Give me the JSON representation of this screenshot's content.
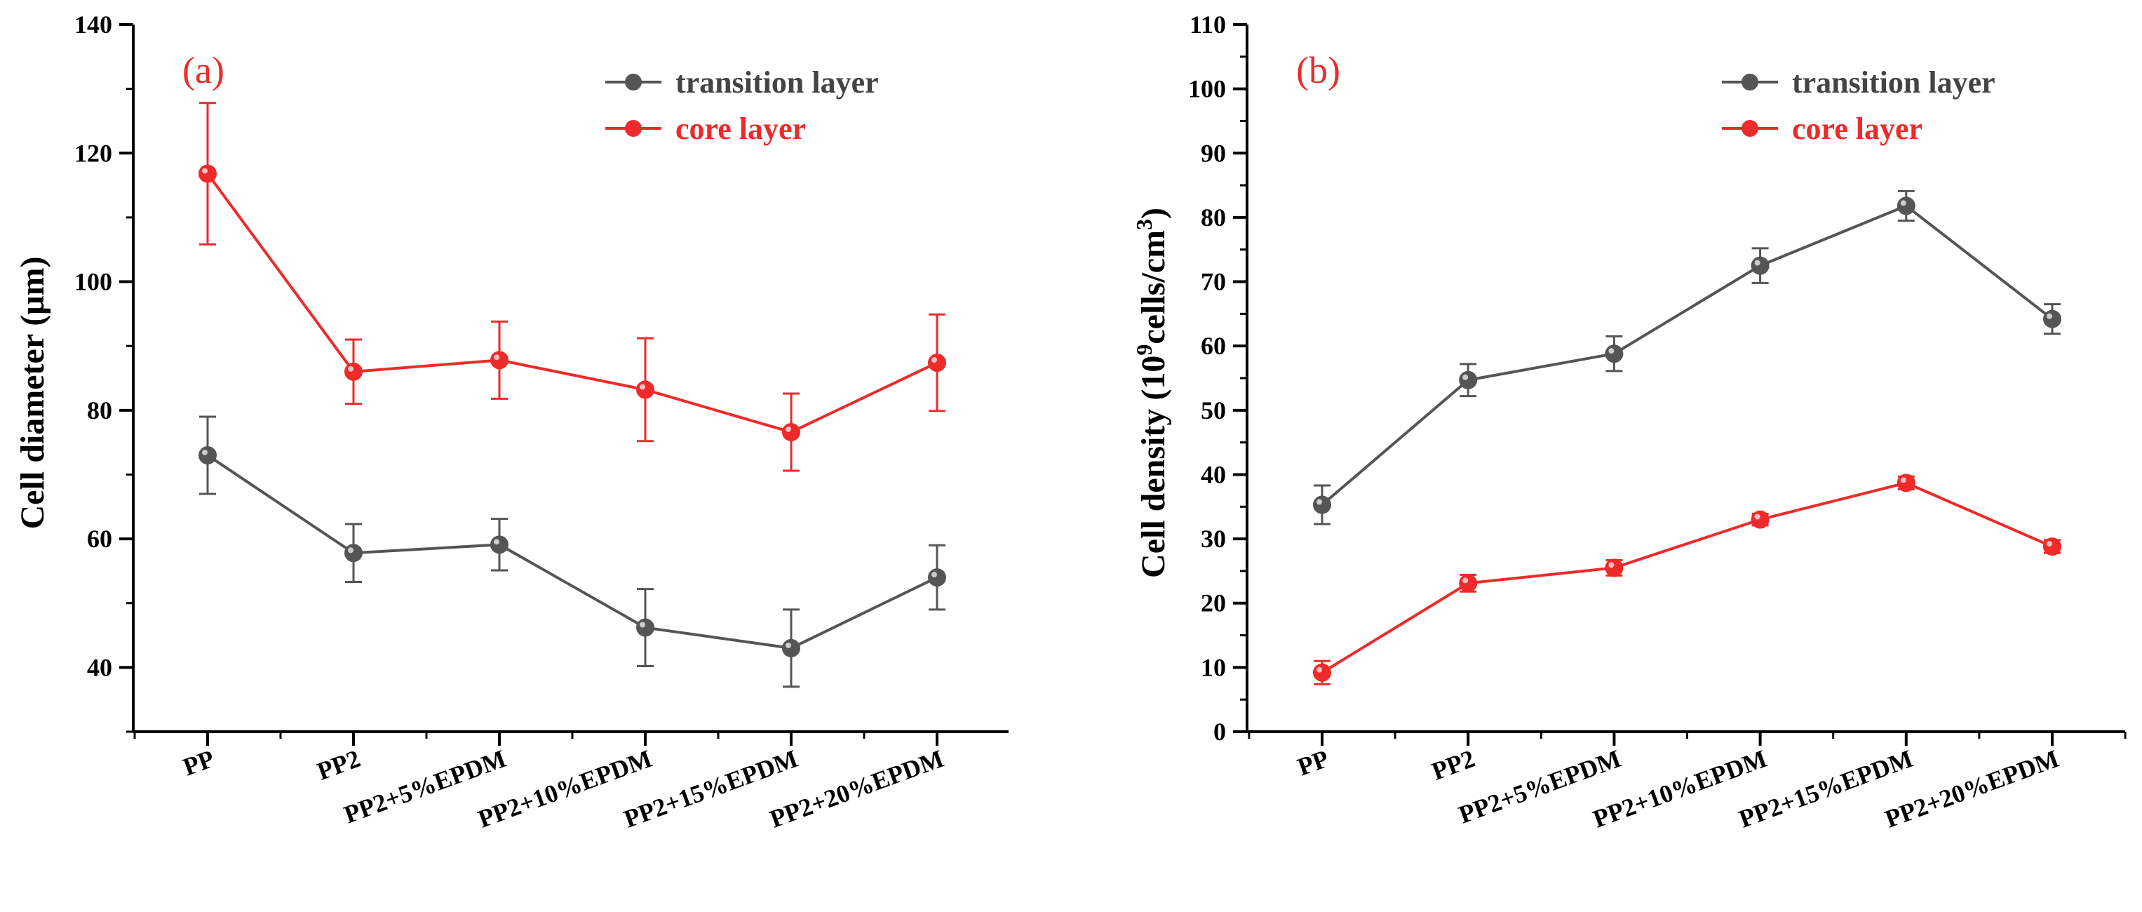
{
  "chart_data": [
    {
      "panel_label": "(a)",
      "type": "line",
      "categories": [
        "PP",
        "PP2",
        "PP2+5%EPDM",
        "PP2+10%EPDM",
        "PP2+15%EPDM",
        "PP2+20%EPDM"
      ],
      "ylabel": "Cell diameter (μm)",
      "ylim": [
        30,
        140
      ],
      "yticks": [
        40,
        60,
        80,
        100,
        120,
        140
      ],
      "yminor": 10,
      "legend_position": "top-right",
      "series": [
        {
          "name": "transition layer",
          "color": "#555555",
          "values": [
            73,
            57.8,
            59.1,
            46.2,
            43,
            54
          ],
          "errors": [
            6,
            4.5,
            4,
            6,
            6,
            5
          ]
        },
        {
          "name": "core layer",
          "color": "#ee2a2a",
          "values": [
            116.8,
            86,
            87.8,
            83.2,
            76.6,
            87.4
          ],
          "errors": [
            11,
            5,
            6,
            8,
            6,
            7.5
          ]
        }
      ]
    },
    {
      "panel_label": "(b)",
      "type": "line",
      "categories": [
        "PP",
        "PP2",
        "PP2+5%EPDM",
        "PP2+10%EPDM",
        "PP2+15%EPDM",
        "PP2+20%EPDM"
      ],
      "ylabel_prefix": "Cell density (10",
      "ylabel_sup1": "9",
      "ylabel_mid": "cells/cm",
      "ylabel_sup2": "3",
      "ylabel_suffix": ")",
      "ylim": [
        0,
        110
      ],
      "yticks": [
        0,
        10,
        20,
        30,
        40,
        50,
        60,
        70,
        80,
        90,
        100,
        110
      ],
      "yminor": 5,
      "legend_position": "top-right",
      "series": [
        {
          "name": "transition layer",
          "color": "#555555",
          "values": [
            35.3,
            54.7,
            58.8,
            72.5,
            81.8,
            64.2
          ],
          "errors": [
            3,
            2.5,
            2.7,
            2.7,
            2.3,
            2.3
          ]
        },
        {
          "name": "core layer",
          "color": "#ee2a2a",
          "values": [
            9.2,
            23.1,
            25.5,
            33,
            38.7,
            28.8
          ],
          "errors": [
            1.8,
            1.3,
            1.2,
            0.9,
            1,
            1
          ]
        }
      ]
    }
  ]
}
